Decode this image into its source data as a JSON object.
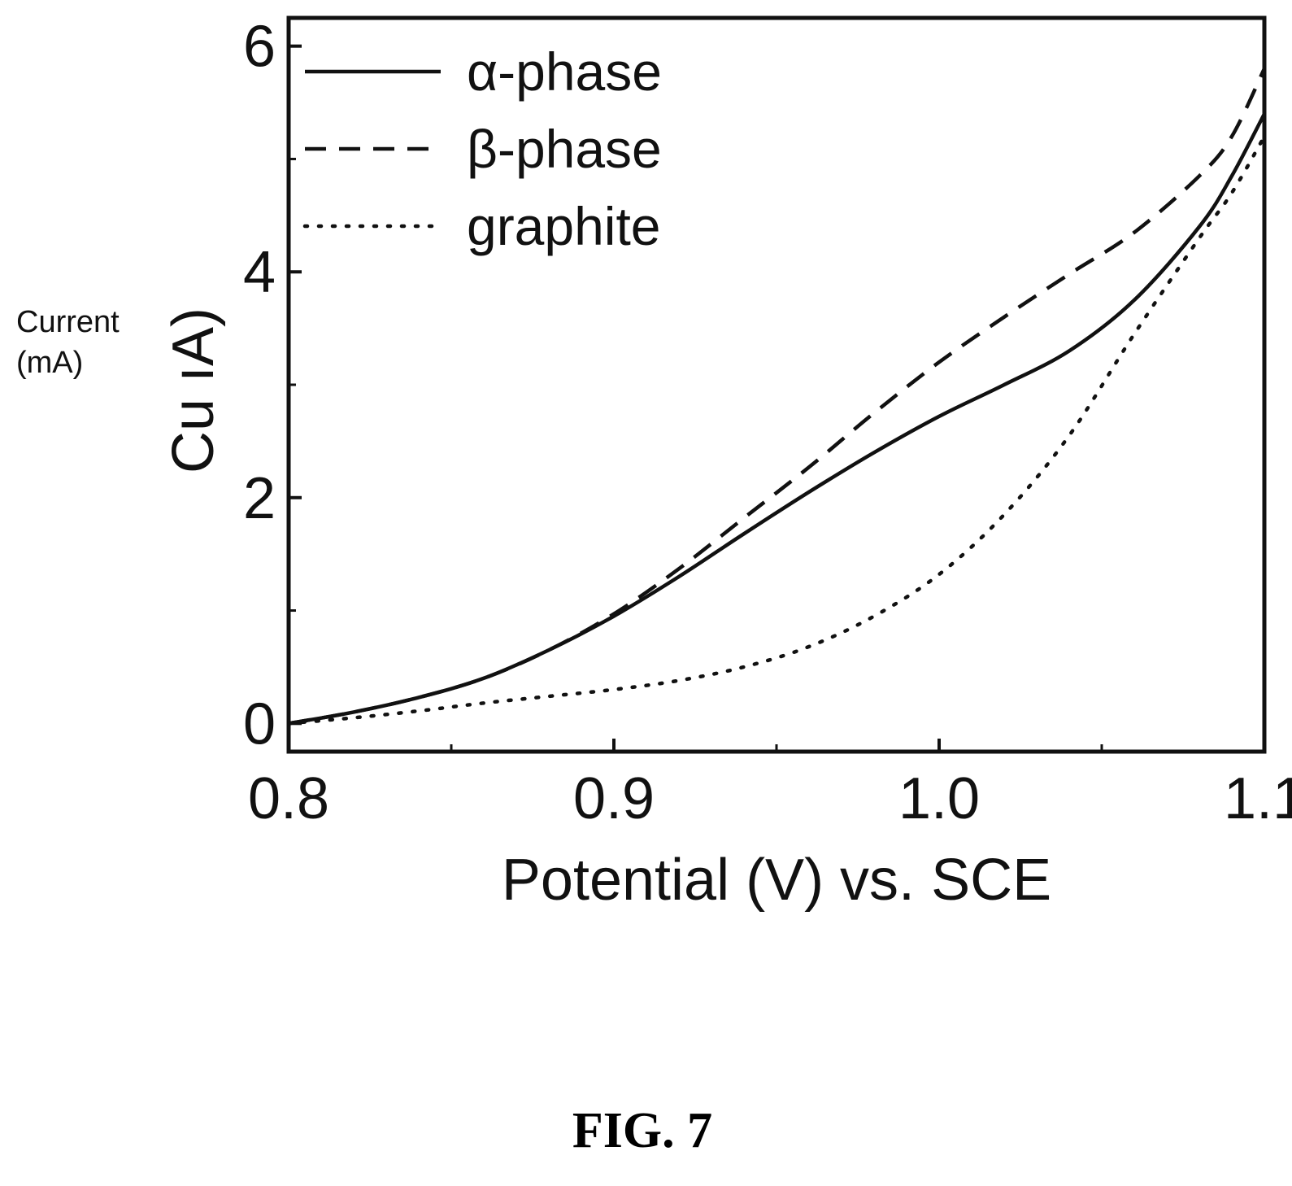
{
  "figure_caption": "FIG. 7",
  "side_annotation": [
    "Current",
    "(mA)"
  ],
  "chart_data": {
    "type": "line",
    "title": "",
    "xlabel": "Potential (V) vs. SCE",
    "ylabel": "Cu  ıA)",
    "xlim": [
      0.8,
      1.1
    ],
    "ylim": [
      -0.25,
      6.25
    ],
    "xticks": [
      0.8,
      0.9,
      1.0,
      1.1
    ],
    "xtick_labels": [
      "0.8",
      "0.9",
      "1.0",
      "1.1"
    ],
    "xminor": [
      0.85,
      0.95,
      1.05
    ],
    "yticks": [
      0,
      2,
      4,
      6
    ],
    "ytick_labels": [
      "0",
      "2",
      "4",
      "6"
    ],
    "yminor": [
      1,
      3,
      5
    ],
    "grid": false,
    "legend_position": "top-left",
    "series": [
      {
        "name": "α-phase",
        "style": "solid",
        "color": "#111111",
        "x": [
          0.8,
          0.82,
          0.84,
          0.86,
          0.88,
          0.9,
          0.92,
          0.94,
          0.96,
          0.98,
          1.0,
          1.02,
          1.04,
          1.06,
          1.08,
          1.09,
          1.1
        ],
        "y": [
          0.0,
          0.1,
          0.23,
          0.4,
          0.65,
          0.95,
          1.3,
          1.68,
          2.05,
          2.4,
          2.72,
          3.0,
          3.3,
          3.75,
          4.4,
          4.85,
          5.4
        ]
      },
      {
        "name": "β-phase",
        "style": "dashed",
        "color": "#111111",
        "x": [
          0.8,
          0.82,
          0.84,
          0.86,
          0.88,
          0.9,
          0.92,
          0.94,
          0.96,
          0.98,
          1.0,
          1.02,
          1.04,
          1.06,
          1.08,
          1.09,
          1.1
        ],
        "y": [
          0.0,
          0.1,
          0.23,
          0.4,
          0.65,
          0.97,
          1.37,
          1.82,
          2.27,
          2.75,
          3.2,
          3.6,
          3.98,
          4.35,
          4.85,
          5.2,
          5.8
        ]
      },
      {
        "name": "graphite",
        "style": "dotted",
        "color": "#111111",
        "x": [
          0.8,
          0.82,
          0.84,
          0.86,
          0.88,
          0.9,
          0.92,
          0.94,
          0.96,
          0.98,
          1.0,
          1.02,
          1.04,
          1.06,
          1.08,
          1.09,
          1.1
        ],
        "y": [
          0.0,
          0.05,
          0.11,
          0.18,
          0.24,
          0.3,
          0.38,
          0.5,
          0.68,
          0.95,
          1.32,
          1.85,
          2.55,
          3.45,
          4.3,
          4.7,
          5.2
        ]
      }
    ]
  }
}
